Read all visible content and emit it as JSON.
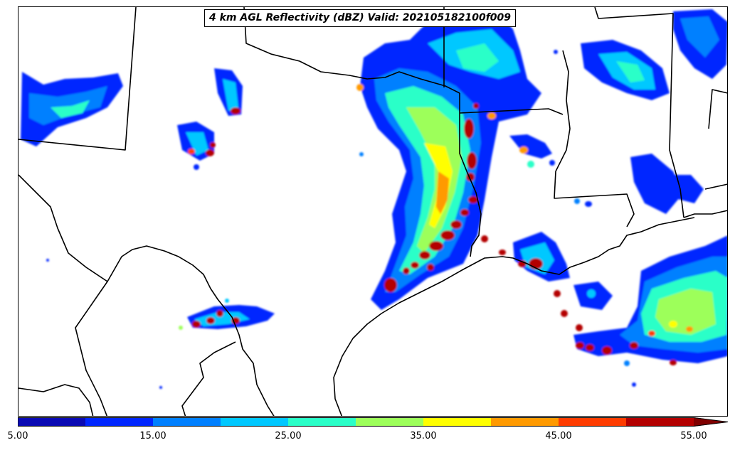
{
  "title": "4 km AGL Reflectivity (dBZ) Valid: 202105182100f009",
  "colorbar": {
    "colors": [
      "#0a0ab4",
      "#0026ff",
      "#0080ff",
      "#00c8ff",
      "#2affc8",
      "#9dff5a",
      "#ffff00",
      "#ff9a00",
      "#ff3c00",
      "#b40000"
    ],
    "extend_color": "#800000",
    "levels": [
      5,
      10,
      15,
      20,
      25,
      30,
      35,
      40,
      45,
      50,
      55
    ],
    "tick_labels": [
      "5.00",
      "15.00",
      "25.00",
      "35.00",
      "45.00",
      "55.00"
    ]
  },
  "map": {
    "region": "Texas and Gulf Coast",
    "background": "#ffffff",
    "border_color": "#000000"
  }
}
